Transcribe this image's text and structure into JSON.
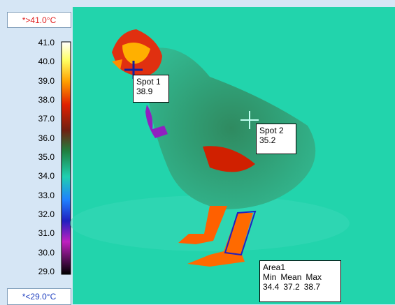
{
  "scale": {
    "max_label": "*>41.0°C",
    "min_label": "*<29.0°C",
    "ticks": [
      "41.0",
      "40.0",
      "39.0",
      "38.0",
      "37.0",
      "36.0",
      "35.0",
      "34.0",
      "33.0",
      "32.0",
      "31.0",
      "30.0",
      "29.0"
    ]
  },
  "spots": [
    {
      "name": "Spot 1",
      "value": "38.9"
    },
    {
      "name": "Spot 2",
      "value": "35.2"
    }
  ],
  "area": {
    "name": "Area1",
    "headers": [
      "Min",
      "Mean",
      "Max"
    ],
    "values": [
      "34.4",
      "37.2",
      "38.7"
    ]
  }
}
